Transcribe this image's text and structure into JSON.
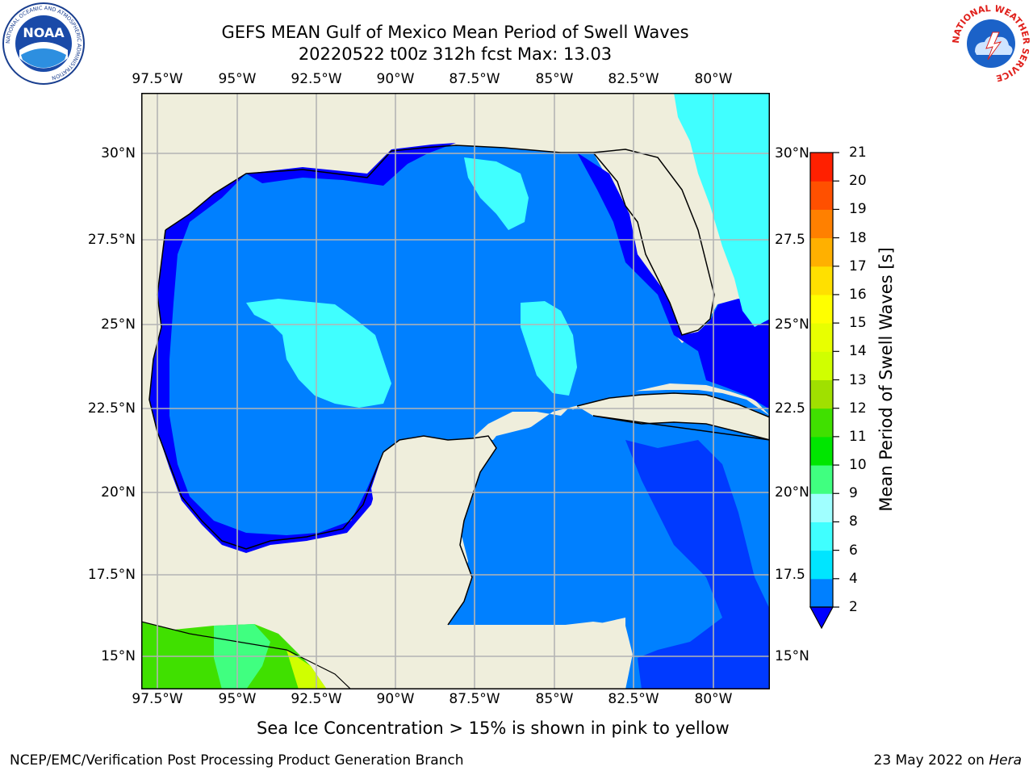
{
  "title_line1": "GEFS MEAN Gulf of Mexico Mean Period of Swell Waves",
  "title_line2": "20220522 t00z 312h fcst   Max: 13.03",
  "lon_ticks": [
    "97.5°W",
    "95°W",
    "92.5°W",
    "90°W",
    "87.5°W",
    "85°W",
    "82.5°W",
    "80°W"
  ],
  "lat_ticks_left": [
    "30°N",
    "27.5°N",
    "25°N",
    "22.5°N",
    "20°N",
    "17.5°N",
    "15°N"
  ],
  "lat_ticks_right": [
    "30°N",
    "27.5",
    "25°N",
    "22.5",
    "20°N",
    "17.5",
    "15°N"
  ],
  "colorbar": {
    "title": "Mean Period of Swell Waves [s]",
    "levels": [
      "2",
      "4",
      "6",
      "8",
      "9",
      "10",
      "11",
      "12",
      "13",
      "14",
      "15",
      "16",
      "17",
      "18",
      "19",
      "20",
      "21"
    ],
    "colors": [
      "#0080ff",
      "#00e5ff",
      "#40ffff",
      "#a0ffff",
      "#40ff80",
      "#00e600",
      "#40e000",
      "#a0e000",
      "#d0ff00",
      "#e8ff00",
      "#ffff00",
      "#ffe000",
      "#ffb000",
      "#ff8000",
      "#ff5000",
      "#ff2000"
    ],
    "under_color": "#0000ff"
  },
  "colors": {
    "land": "#efeedc",
    "ocean_low": "#0000ff",
    "ocean_mid": "#0080ff",
    "ocean_high": "#40ffff"
  },
  "footnote": "Sea Ice Concentration > 15% is shown in pink to yellow",
  "credit": "NCEP/EMC/Verification Post Processing Product Generation Branch",
  "date_prefix": "23 May 2022 on ",
  "date_host": "Hera",
  "logos": {
    "noaa_text": "NOAA",
    "noaa_ring": "NATIONAL OCEANIC AND ATMOSPHERIC ADMINISTRATION",
    "nws_ring": "NATIONAL WEATHER SERVICE"
  }
}
